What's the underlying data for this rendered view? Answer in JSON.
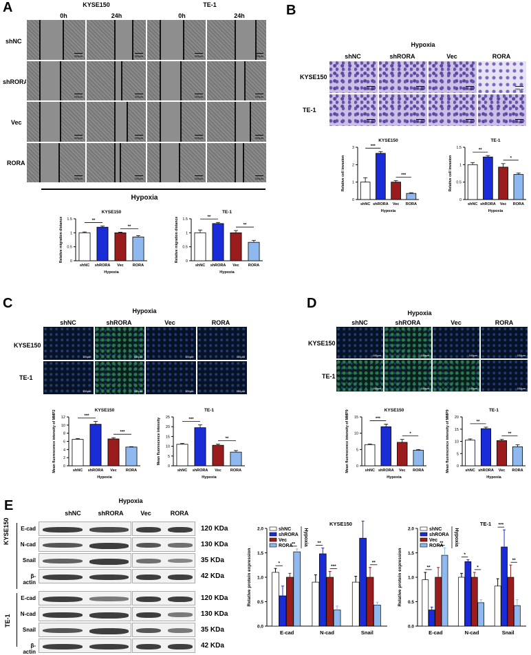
{
  "panels": {
    "A": {
      "letter": "A",
      "cell_lines": [
        "KYSE150",
        "TE-1"
      ],
      "times": [
        "0h",
        "24h"
      ],
      "rows": [
        "shNC",
        "shRORA",
        "Vec",
        "RORA"
      ],
      "scale_label": "200µm",
      "condition": "Hypoxia"
    },
    "B": {
      "letter": "B",
      "condition": "Hypoxia",
      "cols": [
        "shNC",
        "shRORA",
        "Vec",
        "RORA"
      ],
      "rows": [
        "KYSE150",
        "TE-1"
      ],
      "scale_label": "200µm"
    },
    "C": {
      "letter": "C",
      "condition": "Hypoxia",
      "cols": [
        "shNC",
        "shRORA",
        "Vec",
        "RORA"
      ],
      "rows": [
        "KYSE150",
        "TE-1"
      ],
      "scale_label": "100µm"
    },
    "D": {
      "letter": "D",
      "condition": "Hypoxia",
      "cols": [
        "shNC",
        "shRORA",
        "Vec",
        "RORA"
      ],
      "rows": [
        "KYSE150",
        "TE-1"
      ],
      "scale_label": "100µm"
    },
    "E": {
      "letter": "E",
      "condition": "Hypoxia",
      "cols": [
        "shNC",
        "shRORA",
        "Vec",
        "RORA"
      ],
      "groups": [
        "KYSE150",
        "TE-1"
      ],
      "bands": [
        "E-cad",
        "N-cad",
        "Snail",
        "β-actin"
      ],
      "sizes": [
        "120 KDa",
        "130 KDa",
        "35 KDa",
        "42 KDa"
      ]
    }
  },
  "colors": {
    "shNC": "#ffffff",
    "shRORA": "#1a2bd8",
    "Vec": "#9b1c1c",
    "RORA": "#8fb8ee"
  },
  "chart_data": [
    {
      "id": "A1",
      "type": "bar",
      "title": "KYSE150",
      "categories": [
        "shNC",
        "shRORA",
        "Vec",
        "RORA"
      ],
      "values": [
        1.0,
        1.2,
        1.0,
        0.85
      ],
      "errors": [
        0.03,
        0.04,
        0.02,
        0.05
      ],
      "ylabel": "Relative migration distance",
      "xlabel": "Hypoxia",
      "ylim": [
        0,
        1.5
      ],
      "yticks": [
        0.0,
        0.5,
        1.0,
        1.5
      ],
      "sig": [
        {
          "a": 0,
          "b": 1,
          "label": "**"
        },
        {
          "a": 2,
          "b": 3,
          "label": "**"
        }
      ]
    },
    {
      "id": "A2",
      "type": "bar",
      "title": "TE-1",
      "categories": [
        "shNC",
        "shRORA",
        "Vec",
        "RORA"
      ],
      "values": [
        1.0,
        1.33,
        1.0,
        0.66
      ],
      "errors": [
        0.1,
        0.04,
        0.08,
        0.07
      ],
      "ylabel": "Relative migration distance",
      "xlabel": "Hypoxia",
      "ylim": [
        0,
        1.5
      ],
      "yticks": [
        0.0,
        0.5,
        1.0,
        1.5
      ],
      "sig": [
        {
          "a": 0,
          "b": 1,
          "label": "**"
        },
        {
          "a": 2,
          "b": 3,
          "label": "**"
        }
      ]
    },
    {
      "id": "B1",
      "type": "bar",
      "title": "KYSE150",
      "categories": [
        "shNC",
        "shRORA",
        "Vec",
        "RORA"
      ],
      "values": [
        1.0,
        2.65,
        1.0,
        0.35
      ],
      "errors": [
        0.25,
        0.1,
        0.08,
        0.04
      ],
      "ylabel": "Relative cell invasion",
      "xlabel": "Hypoxia",
      "ylim": [
        0,
        3
      ],
      "yticks": [
        0,
        1,
        2,
        3
      ],
      "sig": [
        {
          "a": 0,
          "b": 1,
          "label": "***"
        },
        {
          "a": 2,
          "b": 3,
          "label": "***"
        }
      ]
    },
    {
      "id": "B2",
      "type": "bar",
      "title": "TE-1",
      "categories": [
        "shNC",
        "shRORA",
        "Vec",
        "RORA"
      ],
      "values": [
        1.0,
        1.22,
        0.93,
        0.72
      ],
      "errors": [
        0.06,
        0.04,
        0.1,
        0.04
      ],
      "ylabel": "Relative cell invasion",
      "xlabel": "Hypoxia",
      "ylim": [
        0,
        1.5
      ],
      "yticks": [
        0.0,
        0.5,
        1.0,
        1.5
      ],
      "sig": [
        {
          "a": 0,
          "b": 1,
          "label": "**"
        },
        {
          "a": 2,
          "b": 3,
          "label": "*"
        }
      ]
    },
    {
      "id": "C1",
      "type": "bar",
      "title": "KYSE150",
      "categories": [
        "shNC",
        "shRORA",
        "Vec",
        "RORA"
      ],
      "values": [
        6.5,
        10.2,
        6.6,
        4.6
      ],
      "errors": [
        0.2,
        0.7,
        0.3,
        0.1
      ],
      "ylabel": "Mean fluorescence intensity of MMP2",
      "xlabel": "Hypoxia",
      "ylim": [
        0,
        12
      ],
      "yticks": [
        0,
        2,
        4,
        6,
        8,
        10,
        12
      ],
      "sig": [
        {
          "a": 0,
          "b": 1,
          "label": "***"
        },
        {
          "a": 2,
          "b": 3,
          "label": "***"
        }
      ]
    },
    {
      "id": "C2",
      "type": "bar",
      "title": "TE-1",
      "categories": [
        "shNC",
        "shRORA",
        "Vec",
        "RORA"
      ],
      "values": [
        11,
        19.5,
        10.5,
        7
      ],
      "errors": [
        0.5,
        1.5,
        0.6,
        0.8
      ],
      "ylabel": "Mean fluorescence intensity",
      "xlabel": "Hypoxia",
      "ylim": [
        0,
        25
      ],
      "yticks": [
        0,
        5,
        10,
        15,
        20,
        25
      ],
      "sig": [
        {
          "a": 0,
          "b": 1,
          "label": "***"
        },
        {
          "a": 2,
          "b": 3,
          "label": "**"
        }
      ]
    },
    {
      "id": "D1",
      "type": "bar",
      "title": "KYSE150",
      "categories": [
        "shNC",
        "shRORA",
        "Vec",
        "RORA"
      ],
      "values": [
        6.5,
        12,
        7.2,
        4.8
      ],
      "errors": [
        0.2,
        0.8,
        0.9,
        0.2
      ],
      "ylabel": "Mean fluorescence intensity of MMP9",
      "xlabel": "Hypoxia",
      "ylim": [
        0,
        15
      ],
      "yticks": [
        0,
        5,
        10,
        15
      ],
      "sig": [
        {
          "a": 0,
          "b": 1,
          "label": "***"
        },
        {
          "a": 2,
          "b": 3,
          "label": "*"
        }
      ]
    },
    {
      "id": "D2",
      "type": "bar",
      "title": "TE-1",
      "categories": [
        "shNC",
        "shRORA",
        "Vec",
        "RORA"
      ],
      "values": [
        10.5,
        15.2,
        10.3,
        7.8
      ],
      "errors": [
        0.5,
        0.6,
        0.5,
        0.8
      ],
      "ylabel": "Mean fluorescence intensity of MMP9",
      "xlabel": "Hypoxia",
      "ylim": [
        0,
        20
      ],
      "yticks": [
        0,
        5,
        10,
        15,
        20
      ],
      "sig": [
        {
          "a": 0,
          "b": 1,
          "label": "**"
        },
        {
          "a": 2,
          "b": 3,
          "label": "**"
        }
      ]
    },
    {
      "id": "E1",
      "type": "bar",
      "title": "KYSE150",
      "categories": [
        "E-cad",
        "N-cad",
        "Snail"
      ],
      "series": [
        {
          "name": "shNC",
          "values": [
            1.1,
            0.9,
            0.9
          ],
          "errors": [
            0.08,
            0.15,
            0.12
          ]
        },
        {
          "name": "shRORA",
          "values": [
            0.62,
            1.48,
            1.8
          ],
          "errors": [
            0.2,
            0.12,
            0.35
          ]
        },
        {
          "name": "Vec",
          "values": [
            1.0,
            1.0,
            1.0
          ],
          "errors": [
            0.08,
            0.12,
            0.2
          ]
        },
        {
          "name": "RORA",
          "values": [
            1.52,
            0.33,
            0.43
          ],
          "errors": [
            0.06,
            0.08,
            0.06
          ]
        }
      ],
      "ylabel": "Relative protein expression",
      "legend_note": "Hypoxia",
      "ylim": [
        0,
        2.0
      ],
      "yticks": [
        0.0,
        0.5,
        1.0,
        1.5,
        2.0
      ],
      "sig": [
        {
          "c": 0,
          "a": 0,
          "b": 1,
          "label": "*"
        },
        {
          "c": 0,
          "a": 2,
          "b": 3,
          "label": "**"
        },
        {
          "c": 1,
          "a": 0,
          "b": 1,
          "label": "**"
        },
        {
          "c": 1,
          "a": 2,
          "b": 3,
          "label": "***"
        },
        {
          "c": 2,
          "a": 0,
          "b": 1,
          "label": "***"
        },
        {
          "c": 2,
          "a": 2,
          "b": 3,
          "label": "**"
        }
      ]
    },
    {
      "id": "E2",
      "type": "bar",
      "title": "TE-1",
      "categories": [
        "E-cad",
        "N-cad",
        "Snail"
      ],
      "series": [
        {
          "name": "shNC",
          "values": [
            0.95,
            1.0,
            0.82
          ],
          "errors": [
            0.15,
            0.08,
            0.15
          ]
        },
        {
          "name": "shRORA",
          "values": [
            0.33,
            1.32,
            1.62
          ],
          "errors": [
            0.06,
            0.04,
            0.35
          ]
        },
        {
          "name": "Vec",
          "values": [
            1.0,
            1.0,
            1.0
          ],
          "errors": [
            0.2,
            0.1,
            0.25
          ]
        },
        {
          "name": "RORA",
          "values": [
            1.45,
            0.48,
            0.42
          ],
          "errors": [
            0.15,
            0.06,
            0.12
          ]
        }
      ],
      "ylabel": "Relative protein expression",
      "legend_note": "Hypoxia",
      "ylim": [
        0,
        2.0
      ],
      "yticks": [
        0.0,
        0.5,
        1.0,
        1.5,
        2.0
      ],
      "sig": [
        {
          "c": 0,
          "a": 0,
          "b": 1,
          "label": "**"
        },
        {
          "c": 0,
          "a": 2,
          "b": 3,
          "label": "**"
        },
        {
          "c": 1,
          "a": 0,
          "b": 1,
          "label": "*"
        },
        {
          "c": 1,
          "a": 2,
          "b": 3,
          "label": "*"
        },
        {
          "c": 2,
          "a": 0,
          "b": 1,
          "label": "***"
        },
        {
          "c": 2,
          "a": 2,
          "b": 3,
          "label": "**"
        }
      ]
    }
  ]
}
